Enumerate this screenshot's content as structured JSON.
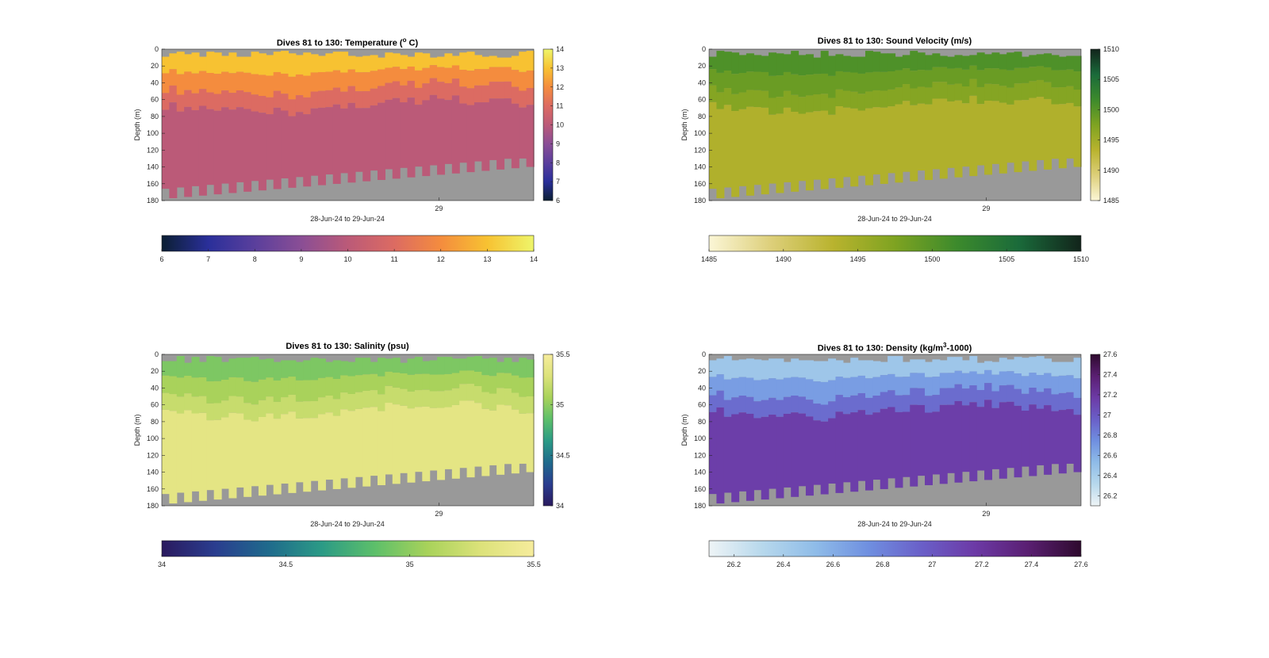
{
  "figure": {
    "xlabel": "28-Jun-24 to 29-Jun-24",
    "ylabel": "Depth (m)",
    "xtick_label": "29"
  },
  "chart_data": [
    {
      "type": "heatmap",
      "title_main": "Dives 81 to 130: Temperature (",
      "title_sup": "o",
      "title_tail": " C)",
      "xlabel": "28-Jun-24 to 29-Jun-24",
      "ylabel": "Depth (m)",
      "ylim": [
        0,
        180
      ],
      "yticks": [
        0,
        20,
        40,
        60,
        80,
        100,
        120,
        140,
        160,
        180
      ],
      "x_tick_labels": [
        "29"
      ],
      "dives": [
        81,
        130
      ],
      "clim": [
        6,
        14
      ],
      "colorbar_ticks": [
        6,
        7,
        8,
        9,
        10,
        11,
        12,
        13,
        14
      ],
      "colormap": [
        "#0b1f33",
        "#2a2f9a",
        "#5a3f9c",
        "#8a4e95",
        "#bb5a78",
        "#dc6b62",
        "#f48c3e",
        "#f7c232",
        "#eef56a"
      ],
      "layers": {
        "surface": 13.0,
        "thermocline": 11.0,
        "deep": 10.0
      },
      "mixed_layer_depth_m": [
        40,
        55
      ],
      "bottom_depth_m": [
        178,
        140
      ]
    },
    {
      "type": "heatmap",
      "title_main": "Dives 81 to 130: Sound Velocity (m/s)",
      "title_sup": "",
      "title_tail": "",
      "xlabel": "28-Jun-24 to 29-Jun-24",
      "ylabel": "Depth (m)",
      "ylim": [
        0,
        180
      ],
      "yticks": [
        0,
        20,
        40,
        60,
        80,
        100,
        120,
        140,
        160,
        180
      ],
      "x_tick_labels": [
        "29"
      ],
      "dives": [
        81,
        130
      ],
      "clim": [
        1485,
        1510
      ],
      "colorbar_ticks": [
        1485,
        1490,
        1495,
        1500,
        1505,
        1510
      ],
      "colormap": [
        "#fbf6d6",
        "#ddcf7a",
        "#b9b32e",
        "#7ea321",
        "#3c8a2c",
        "#1a6a3a",
        "#12241b"
      ],
      "layers": {
        "surface": 1500.5,
        "thermocline": 1497.0,
        "deep": 1494.0
      },
      "mixed_layer_depth_m": [
        40,
        55
      ],
      "bottom_depth_m": [
        178,
        140
      ]
    },
    {
      "type": "heatmap",
      "title_main": "Dives 81 to 130: Salinity (psu)",
      "title_sup": "",
      "title_tail": "",
      "xlabel": "28-Jun-24 to 29-Jun-24",
      "ylabel": "Depth (m)",
      "ylim": [
        0,
        180
      ],
      "yticks": [
        0,
        20,
        40,
        60,
        80,
        100,
        120,
        140,
        160,
        180
      ],
      "x_tick_labels": [
        "29"
      ],
      "dives": [
        81,
        130
      ],
      "clim": [
        34,
        35.5
      ],
      "colorbar_ticks": [
        34,
        34.5,
        35,
        35.5
      ],
      "colormap": [
        "#2a1a5e",
        "#2a3d8f",
        "#1f6a8c",
        "#2b9a86",
        "#5cbf6a",
        "#a8d25a",
        "#dce27a",
        "#f6ec9c"
      ],
      "layers": {
        "surface": 34.95,
        "thermocline": 35.2,
        "deep": 35.35
      },
      "mixed_layer_depth_m": [
        40,
        55
      ],
      "bottom_depth_m": [
        178,
        140
      ]
    },
    {
      "type": "heatmap",
      "title_main": "Dives 81 to 130: Density (kg/m",
      "title_sup": "3",
      "title_tail": "-1000)",
      "xlabel": "28-Jun-24 to 29-Jun-24",
      "ylabel": "Depth (m)",
      "ylim": [
        0,
        180
      ],
      "yticks": [
        0,
        20,
        40,
        60,
        80,
        100,
        120,
        140,
        160,
        180
      ],
      "x_tick_labels": [
        "29"
      ],
      "dives": [
        81,
        130
      ],
      "clim": [
        26.1,
        27.6
      ],
      "colorbar_ticks": [
        26.2,
        26.4,
        26.6,
        26.8,
        27,
        27.2,
        27.4,
        27.6
      ],
      "colorbar_tick_labels": [
        "26.2",
        "26.4",
        "26.6",
        "26.8",
        "27",
        "27.2",
        "27.4",
        "27.6"
      ],
      "colormap": [
        "#eef4f6",
        "#b7d8ec",
        "#8fbce8",
        "#6f8fe0",
        "#6a5fc8",
        "#6c3aa6",
        "#5a1f72",
        "#2e0a2e"
      ],
      "layers": {
        "surface": 26.45,
        "thermocline": 26.9,
        "deep": 27.15
      },
      "mixed_layer_depth_m": [
        40,
        55
      ],
      "bottom_depth_m": [
        178,
        140
      ]
    }
  ],
  "colors": {
    "nodata": "#999999",
    "axis": "#262626"
  }
}
